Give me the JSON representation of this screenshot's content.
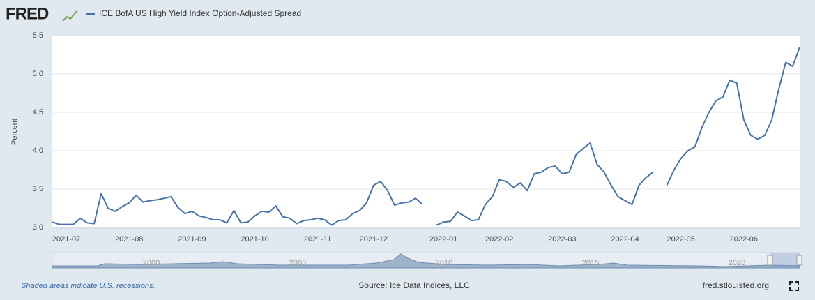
{
  "logo": "FRED",
  "navigator": {
    "labels": [
      "2000",
      "2005",
      "2010",
      "2015",
      "2020"
    ]
  },
  "footer": {
    "note": "Shaded areas indicate U.S. recessions.",
    "source": "Source: Ice Data Indices, LLC",
    "site": "fred.stlouisfed.org"
  },
  "chart_data": {
    "type": "line",
    "y_label": "Percent",
    "categories": [
      null,
      null,
      "2021-07",
      null,
      null,
      null,
      null,
      null,
      null,
      null,
      null,
      "2021-08",
      null,
      null,
      null,
      null,
      null,
      null,
      null,
      null,
      "2021-09",
      null,
      null,
      null,
      null,
      null,
      null,
      null,
      null,
      "2021-10",
      null,
      null,
      null,
      null,
      null,
      null,
      null,
      null,
      "2021-11",
      null,
      null,
      null,
      null,
      null,
      null,
      null,
      "2021-12",
      null,
      null,
      null,
      null,
      null,
      null,
      null,
      null,
      null,
      "2022-01",
      null,
      null,
      null,
      null,
      null,
      null,
      null,
      "2022-02",
      null,
      null,
      null,
      null,
      null,
      null,
      null,
      null,
      "2022-03",
      null,
      null,
      null,
      null,
      null,
      null,
      null,
      null,
      "2022-04",
      null,
      null,
      null,
      null,
      null,
      null,
      null,
      "2022-05",
      null,
      null,
      null,
      null,
      null,
      null,
      null,
      null,
      "2022-06",
      null,
      null,
      null,
      null,
      null,
      null,
      null,
      null
    ],
    "series": [
      {
        "name": "ICE BofA US High Yield Index Option-Adjusted Spread",
        "color": "#4572a7",
        "values": [
          3.07,
          3.04,
          3.04,
          3.04,
          3.12,
          3.06,
          3.05,
          3.44,
          3.25,
          3.21,
          3.27,
          3.32,
          3.42,
          3.33,
          3.35,
          3.36,
          3.38,
          3.4,
          3.26,
          3.18,
          3.21,
          3.15,
          3.13,
          3.1,
          3.1,
          3.06,
          3.22,
          3.06,
          3.07,
          3.15,
          3.21,
          3.2,
          3.28,
          3.14,
          3.12,
          3.05,
          3.09,
          3.1,
          3.12,
          3.1,
          3.03,
          3.09,
          3.1,
          3.18,
          3.22,
          3.32,
          3.55,
          3.6,
          3.48,
          3.29,
          3.32,
          3.33,
          3.38,
          3.3,
          null,
          3.03,
          3.07,
          3.08,
          3.2,
          3.15,
          3.09,
          3.1,
          3.3,
          3.4,
          3.62,
          3.6,
          3.52,
          3.58,
          3.48,
          3.7,
          3.72,
          3.78,
          3.8,
          3.7,
          3.72,
          3.95,
          4.03,
          4.1,
          3.82,
          3.72,
          3.55,
          3.4,
          3.35,
          3.3,
          3.55,
          3.65,
          3.72,
          null,
          3.55,
          3.75,
          3.9,
          4.0,
          4.05,
          4.3,
          4.5,
          4.65,
          4.7,
          4.92,
          4.88,
          4.4,
          4.2,
          4.15,
          4.2,
          4.4,
          4.8,
          5.15,
          5.1,
          5.35
        ]
      }
    ],
    "ylim": [
      3.0,
      5.5
    ],
    "yticks": [
      {
        "value": 3.0,
        "label": "3.0"
      },
      3.5,
      {
        "value": 4.0,
        "label": "4.0"
      },
      4.5,
      {
        "value": 5.0,
        "label": "5.0"
      },
      5.5
    ],
    "grid": true
  }
}
